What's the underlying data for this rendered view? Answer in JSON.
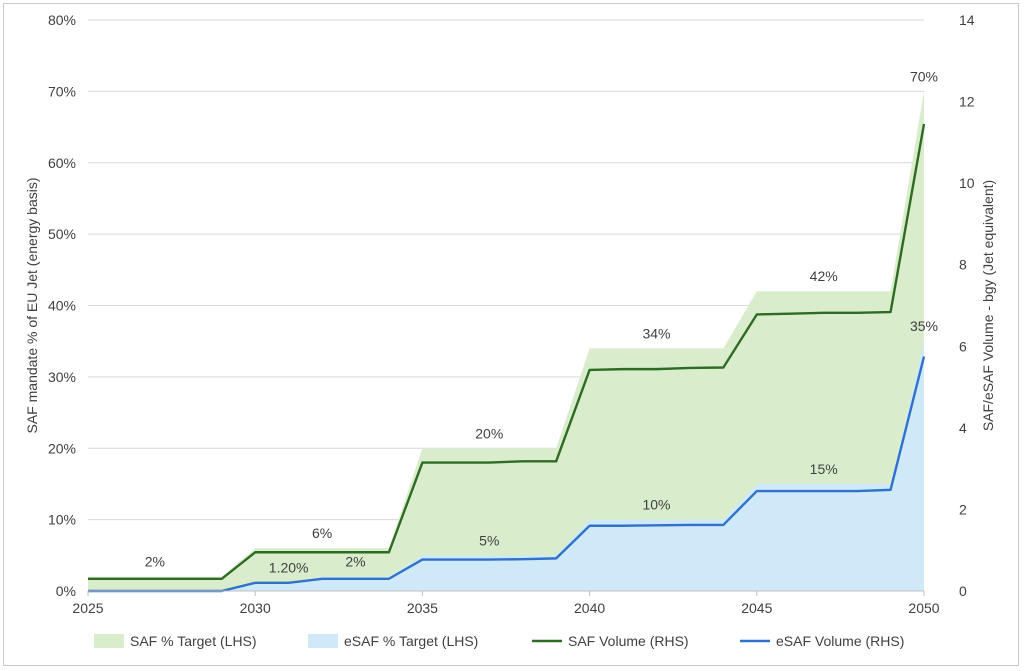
{
  "chart_data": {
    "type": "area",
    "x": [
      2025,
      2026,
      2027,
      2028,
      2029,
      2030,
      2031,
      2032,
      2033,
      2034,
      2035,
      2036,
      2037,
      2038,
      2039,
      2040,
      2041,
      2042,
      2043,
      2044,
      2045,
      2046,
      2047,
      2048,
      2049,
      2050
    ],
    "x_ticks": [
      "2025",
      "2030",
      "2035",
      "2040",
      "2045",
      "2050"
    ],
    "y_left_label": "SAF mandate % of EU Jet  (energy basis)",
    "y_left_ticks": [
      "0%",
      "10%",
      "20%",
      "30%",
      "40%",
      "50%",
      "60%",
      "70%",
      "80%"
    ],
    "y_left_lim": [
      0,
      80
    ],
    "y_right_label": "SAF/eSAF Volume - bgy (Jet equivalent)",
    "y_right_ticks": [
      "0",
      "2",
      "4",
      "6",
      "8",
      "10",
      "12",
      "14"
    ],
    "y_right_lim": [
      0,
      14
    ],
    "grid": "horizontal",
    "legend_position": "bottom",
    "series": [
      {
        "name": "SAF % Target (LHS)",
        "kind": "area",
        "axis": "left",
        "color": "#d9edcd",
        "values": [
          2,
          2,
          2,
          2,
          2,
          6,
          6,
          6,
          6,
          6,
          20,
          20,
          20,
          20,
          20,
          34,
          34,
          34,
          34,
          34,
          42,
          42,
          42,
          42,
          42,
          70
        ]
      },
      {
        "name": "eSAF % Target (LHS)",
        "kind": "area",
        "axis": "left",
        "color": "#cfe9f8",
        "values": [
          0,
          0,
          0,
          0,
          0,
          1.2,
          1.2,
          2,
          2,
          2,
          5,
          5,
          5,
          5,
          5,
          10,
          10,
          10,
          10,
          10,
          15,
          15,
          15,
          15,
          15,
          35
        ]
      },
      {
        "name": "SAF Volume (RHS)",
        "kind": "line",
        "axis": "right",
        "color": "#2e6b24",
        "values": [
          0.3,
          0.3,
          0.3,
          0.3,
          0.3,
          0.95,
          0.95,
          0.95,
          0.95,
          0.95,
          3.15,
          3.15,
          3.15,
          3.18,
          3.18,
          5.42,
          5.44,
          5.44,
          5.47,
          5.48,
          6.78,
          6.8,
          6.82,
          6.82,
          6.84,
          11.45
        ]
      },
      {
        "name": "eSAF Volume (RHS)",
        "kind": "line",
        "axis": "right",
        "color": "#2f72c8",
        "values": [
          0,
          0,
          0,
          0,
          0,
          0.2,
          0.2,
          0.3,
          0.3,
          0.3,
          0.77,
          0.77,
          0.77,
          0.78,
          0.8,
          1.6,
          1.6,
          1.61,
          1.62,
          1.62,
          2.45,
          2.45,
          2.45,
          2.45,
          2.48,
          5.75
        ]
      }
    ],
    "data_labels": [
      {
        "text": "2%",
        "x": 2027,
        "y": 2
      },
      {
        "text": "6%",
        "x": 2032,
        "y": 6
      },
      {
        "text": "1.20%",
        "x": 2031,
        "y": 1.2
      },
      {
        "text": "2%",
        "x": 2033,
        "y": 2
      },
      {
        "text": "20%",
        "x": 2037,
        "y": 20
      },
      {
        "text": "5%",
        "x": 2037,
        "y": 5
      },
      {
        "text": "34%",
        "x": 2042,
        "y": 34
      },
      {
        "text": "10%",
        "x": 2042,
        "y": 10
      },
      {
        "text": "42%",
        "x": 2047,
        "y": 42
      },
      {
        "text": "15%",
        "x": 2047,
        "y": 15
      },
      {
        "text": "70%",
        "x": 2050,
        "y": 70
      },
      {
        "text": "35%",
        "x": 2050,
        "y": 35
      }
    ]
  }
}
